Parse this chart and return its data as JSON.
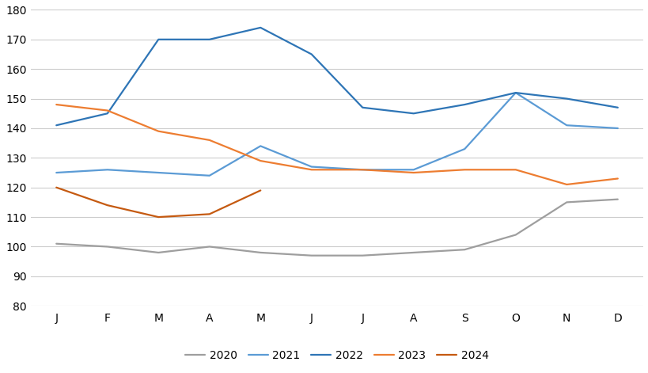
{
  "months": [
    "J",
    "F",
    "M",
    "A",
    "M",
    "J",
    "J",
    "A",
    "S",
    "O",
    "N",
    "D"
  ],
  "data_2020": [
    101,
    100,
    98,
    100,
    98,
    97,
    97,
    98,
    99,
    104,
    115,
    116
  ],
  "data_2021": [
    125,
    126,
    125,
    124,
    134,
    127,
    126,
    126,
    133,
    152,
    141,
    140
  ],
  "data_2022": [
    141,
    145,
    170,
    170,
    174,
    165,
    147,
    145,
    148,
    152,
    150,
    147
  ],
  "data_2023": [
    148,
    146,
    139,
    136,
    129,
    126,
    126,
    125,
    126,
    126,
    121,
    123
  ],
  "data_2024": [
    120,
    114,
    110,
    111,
    119,
    null,
    null,
    null,
    null,
    null,
    null,
    null
  ],
  "color_2020": "#9e9e9e",
  "color_2021": "#5B9BD5",
  "color_2022": "#2E75B6",
  "color_2023": "#ED7D31",
  "color_2024": "#C55A11",
  "ylim": [
    80,
    180
  ],
  "yticks": [
    80,
    90,
    100,
    110,
    120,
    130,
    140,
    150,
    160,
    170,
    180
  ],
  "background_color": "#ffffff",
  "grid_color": "#cccccc",
  "linewidth": 1.6,
  "tick_fontsize": 10,
  "legend_fontsize": 10
}
